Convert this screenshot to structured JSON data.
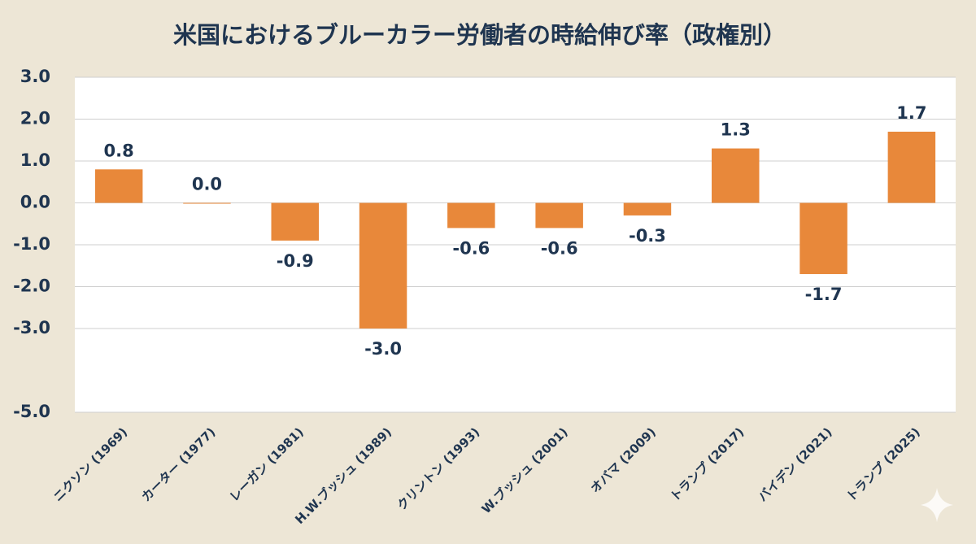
{
  "chart_data": {
    "type": "bar",
    "title": "米国におけるブルーカラー労働者の時給伸び率（政権別）",
    "categories": [
      "ニクソン (1969)",
      "カーター (1977)",
      "レーガン (1981)",
      "H.W.ブッシュ (1989)",
      "クリントン (1993)",
      "W.ブッシュ (2001)",
      "オバマ (2009)",
      "トランプ (2017)",
      "バイデン (2021)",
      "トランプ (2025)"
    ],
    "values": [
      0.8,
      0.0,
      -0.9,
      -3.0,
      -0.6,
      -0.6,
      -0.3,
      1.3,
      -1.7,
      1.7
    ],
    "value_labels": [
      "0.8",
      "0.0",
      "-0.9",
      "-3.0",
      "-0.6",
      "-0.6",
      "-0.3",
      "1.3",
      "-1.7",
      "1.7"
    ],
    "color": "#e8883a",
    "ylim": [
      -5,
      3
    ],
    "yticks": [
      {
        "value": 3,
        "label": "3.0"
      },
      {
        "value": 2,
        "label": "2.0"
      },
      {
        "value": 1,
        "label": "1.0"
      },
      {
        "value": 0,
        "label": "0.0"
      },
      {
        "value": -1,
        "label": "-1.0"
      },
      {
        "value": -2,
        "label": "-2.0"
      },
      {
        "value": -3,
        "label": "-3.0"
      },
      {
        "value": -5,
        "label": "-5.0"
      }
    ],
    "grid": true
  }
}
